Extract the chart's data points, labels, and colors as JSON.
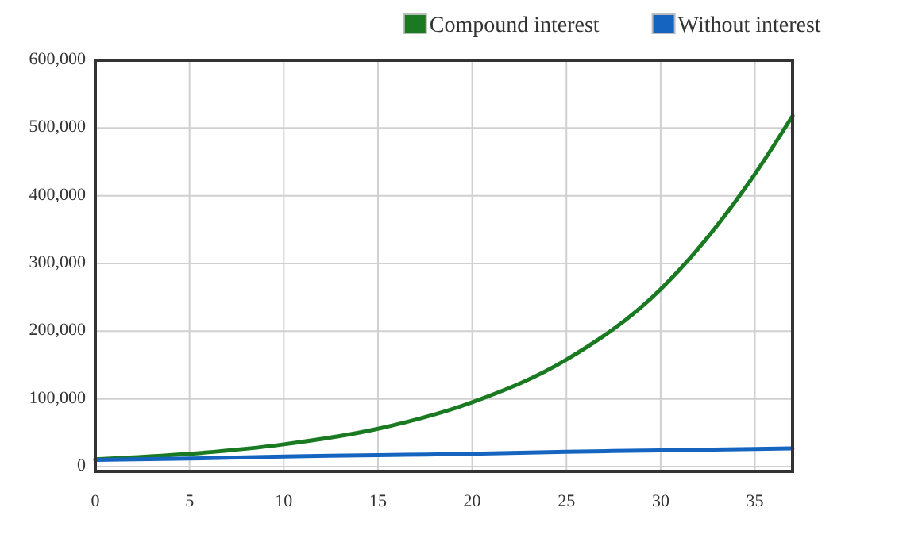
{
  "chart_data": {
    "type": "line",
    "x": [
      0,
      5,
      10,
      15,
      20,
      25,
      30,
      35,
      37
    ],
    "series": [
      {
        "name": "Compound interest",
        "color": "#1a7a22",
        "values": [
          11000,
          19000,
          33000,
          56000,
          95000,
          158000,
          262000,
          432000,
          518000
        ]
      },
      {
        "name": "Without interest",
        "color": "#1565c0",
        "values": [
          10000,
          12000,
          15000,
          17000,
          19000,
          22000,
          24000,
          26000,
          27000
        ]
      }
    ],
    "xlim": [
      0,
      37
    ],
    "xticks": [
      0,
      5,
      10,
      15,
      20,
      25,
      30,
      35
    ],
    "ylim": [
      -7000,
      600000
    ],
    "yticks": [
      {
        "value": 0,
        "label": "0"
      },
      {
        "value": 100000,
        "label": "100,000"
      },
      {
        "value": 200000,
        "label": "200,000"
      },
      {
        "value": 300000,
        "label": "300,000"
      },
      {
        "value": 400000,
        "label": "400,000"
      },
      {
        "value": 500000,
        "label": "500,000"
      },
      {
        "value": 600000,
        "label": "600,000"
      }
    ],
    "grid": true,
    "legend": "top right",
    "marker": "none",
    "line_style": "solid"
  }
}
